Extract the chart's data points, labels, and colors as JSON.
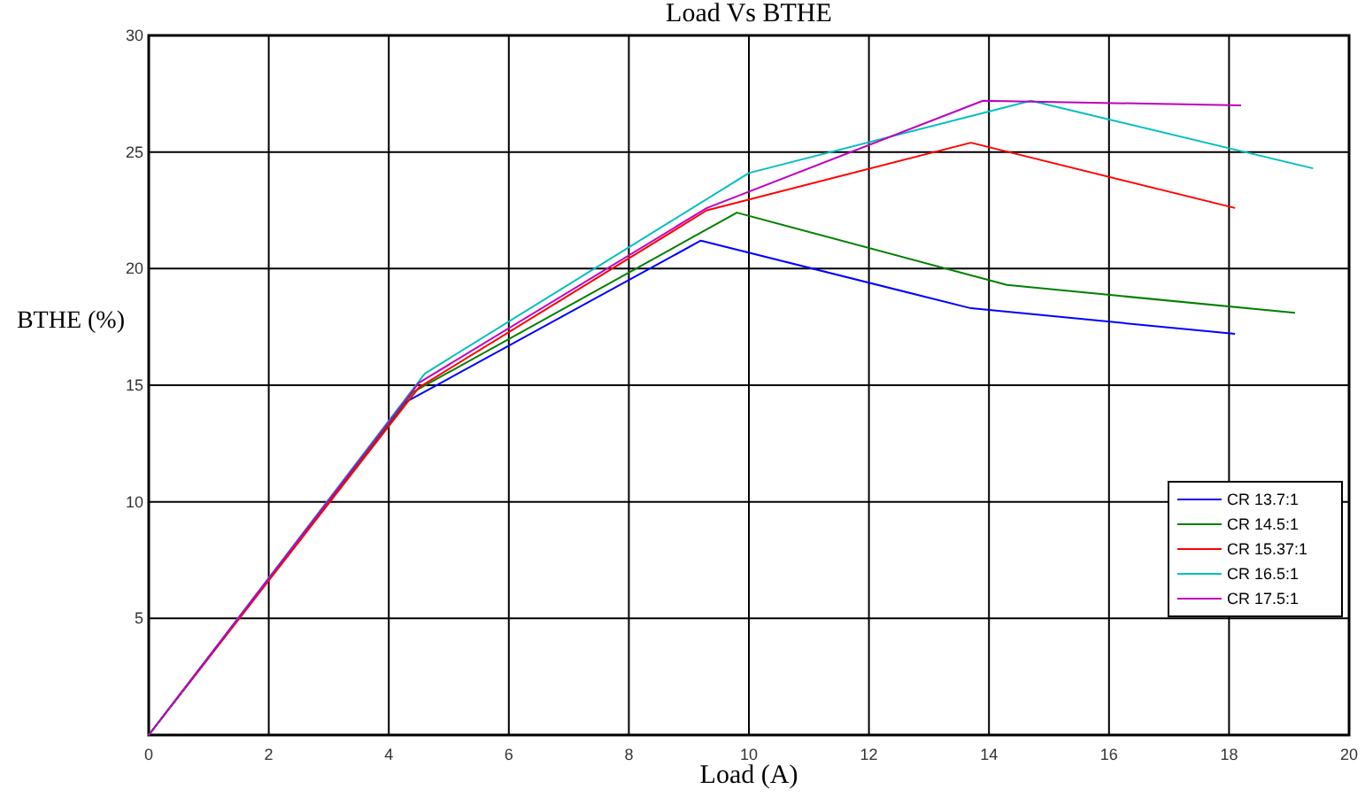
{
  "chart_data": {
    "type": "line",
    "title": "Load Vs BTHE",
    "xlabel": "Load (A)",
    "ylabel": "BTHE (%)",
    "xlim": [
      0,
      20
    ],
    "xticks": [
      0,
      2,
      4,
      6,
      8,
      10,
      12,
      14,
      16,
      18,
      20
    ],
    "ylim": [
      0,
      30
    ],
    "yticks": [
      {
        "value": 0,
        "label": null
      },
      5,
      10,
      15,
      20,
      25,
      30
    ],
    "grid": true,
    "legend": "bottom right",
    "line_style": "solid",
    "marker": "none",
    "series": [
      {
        "name": "CR 13.7:1",
        "color": "#0000ff",
        "x": [
          0,
          4.3,
          9.2,
          13.7,
          18.1
        ],
        "values": [
          0,
          14.3,
          21.2,
          18.3,
          17.2
        ]
      },
      {
        "name": "CR 14.5:1",
        "color": "#007f00",
        "x": [
          0,
          4.4,
          9.8,
          14.3,
          19.1
        ],
        "values": [
          0,
          14.7,
          22.4,
          19.3,
          18.1
        ]
      },
      {
        "name": "CR 15.37:1",
        "color": "#ff0000",
        "x": [
          0,
          4.5,
          9.3,
          13.7,
          18.1
        ],
        "values": [
          0,
          14.9,
          22.5,
          25.4,
          22.6
        ]
      },
      {
        "name": "CR 16.5:1",
        "color": "#00bfbf",
        "x": [
          0,
          4.6,
          10.0,
          14.7,
          19.4
        ],
        "values": [
          0,
          15.5,
          24.1,
          27.2,
          24.3
        ]
      },
      {
        "name": "CR 17.5:1",
        "color": "#bf00bf",
        "x": [
          0,
          4.5,
          9.3,
          13.9,
          18.2
        ],
        "values": [
          0,
          15.1,
          22.6,
          27.2,
          27.0
        ]
      }
    ]
  }
}
